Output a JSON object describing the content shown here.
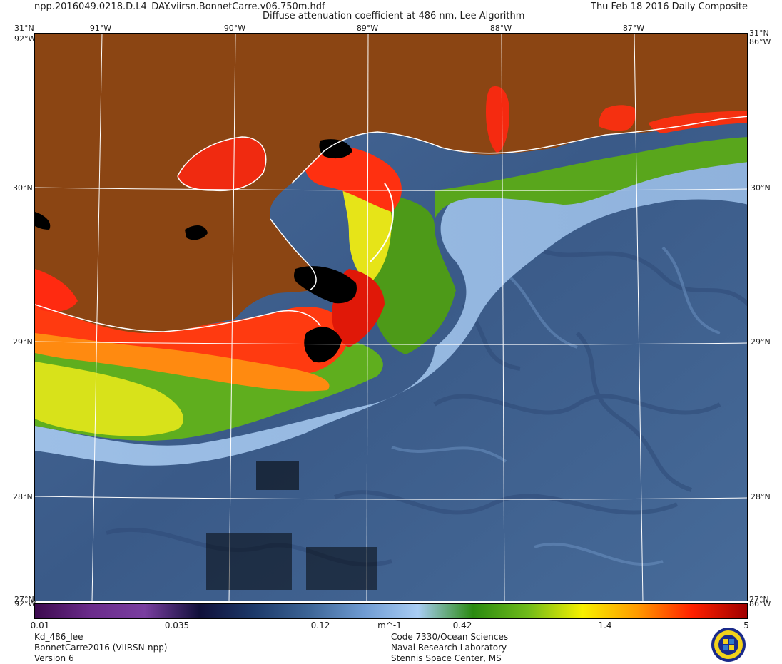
{
  "header": {
    "filename": "npp.2016049.0218.D.L4_DAY.viirsn.BonnetCarre.v06.750m.hdf",
    "product_title": "Diffuse attenuation coefficient at 486 nm, Lee Algorithm",
    "date_label": "Thu Feb 18 2016 Daily Composite"
  },
  "map": {
    "lat_labels": [
      "31°N",
      "30°N",
      "29°N",
      "28°N"
    ],
    "lon_labels": [
      "91°W",
      "90°W",
      "89°W",
      "88°W",
      "87°W"
    ],
    "corner_labels": {
      "top_left": "31°N",
      "top_right": "31°N",
      "left_edge": "92°W",
      "right_edge": "86°W",
      "bottom_left": "27°N",
      "bottom_left_w": "92°W",
      "bottom_right": "27°N",
      "bottom_right_w": "86°W"
    },
    "colors": {
      "land": "#8B4513",
      "coastline": "#ffffff",
      "grid": "#ffffff",
      "missing": "#000000",
      "offshore": "#3c5a85",
      "shelf": "#9fbde0"
    }
  },
  "colorbar": {
    "tick_labels": [
      "0.01",
      "0.035",
      "0.12",
      "m^-1",
      "0.42",
      "1.4",
      "5"
    ],
    "stops": [
      "#3d0a4f",
      "#6a2b8a",
      "#7a3ea0",
      "#10103a",
      "#1d3a6a",
      "#3d6596",
      "#6f9bd2",
      "#a9cdf4",
      "#2a8a10",
      "#6fbb1a",
      "#f7f000",
      "#ff9a00",
      "#ff2000",
      "#a00000"
    ]
  },
  "footer": {
    "left_lines": [
      "Kd_486_lee",
      "BonnetCarre2016 (VIIRSN-npp)",
      "Version 6"
    ],
    "center_lines": [
      "Code 7330/Ocean Sciences",
      "Naval Research Laboratory",
      "Stennis Space Center, MS"
    ],
    "logo_icon": "nrl-seal-icon"
  }
}
